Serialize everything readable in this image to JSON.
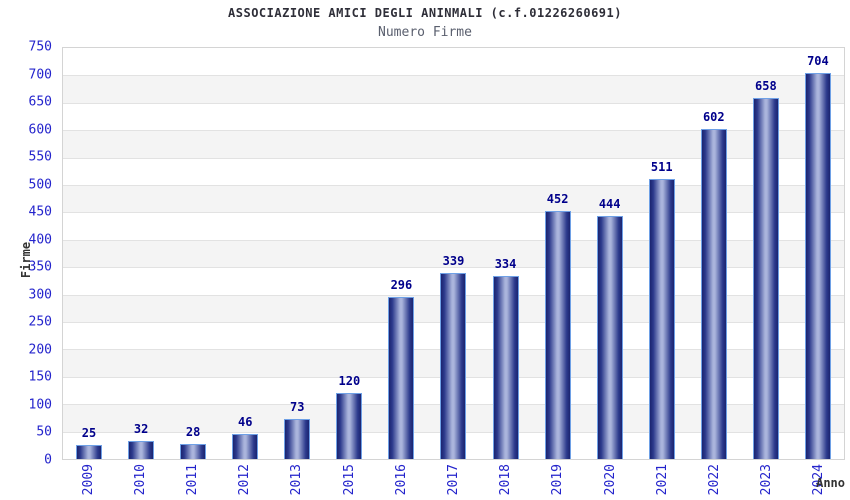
{
  "header": {
    "title": "ASSOCIAZIONE AMICI DEGLI ANINMALI (c.f.01226260691)",
    "subtitle": "Numero Firme"
  },
  "chart_data": {
    "type": "bar",
    "title": "ASSOCIAZIONE AMICI DEGLI ANINMALI (c.f.01226260691)",
    "subtitle": "Numero Firme",
    "categories": [
      "2009",
      "2010",
      "2011",
      "2012",
      "2013",
      "2015",
      "2016",
      "2017",
      "2018",
      "2019",
      "2020",
      "2021",
      "2022",
      "2023",
      "2024"
    ],
    "values": [
      25,
      32,
      28,
      46,
      73,
      120,
      296,
      339,
      334,
      452,
      444,
      511,
      602,
      658,
      704
    ],
    "xlabel": "Anno",
    "ylabel": "Firme",
    "ylim": [
      0,
      750
    ],
    "ytick_step": 50,
    "y_ticks": [
      0,
      50,
      100,
      150,
      200,
      250,
      300,
      350,
      400,
      450,
      500,
      550,
      600,
      650,
      700,
      750
    ],
    "grid": "horizontal-bands",
    "legend": "none"
  },
  "colors": {
    "tick_blue": "#2424cc",
    "value_label": "#00008b",
    "bar_edge": "#6ea0e6",
    "bar_dark": "#1b2470",
    "bar_mid": "#2c3a8c",
    "bar_light": "#aab4dc",
    "band_gray": "#f4f4f4",
    "grid_line": "#e2e2e2",
    "plot_border": "#d4d4d4",
    "title_color": "#2e2e38",
    "subtitle_color": "#5a5f6e",
    "axis_title_color": "#333333"
  }
}
